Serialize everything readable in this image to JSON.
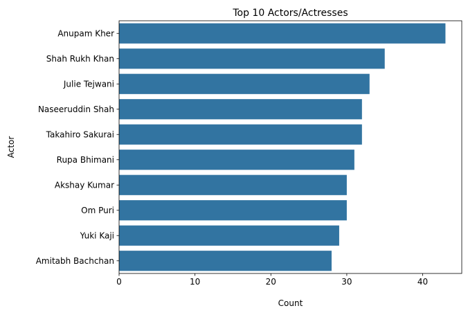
{
  "chart_data": {
    "type": "bar",
    "orientation": "horizontal",
    "title": "Top 10 Actors/Actresses",
    "xlabel": "Count",
    "ylabel": "Actor",
    "categories": [
      "Anupam Kher",
      "Shah Rukh Khan",
      "Julie Tejwani",
      "Naseeruddin Shah",
      "Takahiro Sakurai",
      "Rupa Bhimani",
      "Akshay Kumar",
      "Om Puri",
      "Yuki Kaji",
      "Amitabh Bachchan"
    ],
    "values": [
      43,
      35,
      33,
      32,
      32,
      31,
      30,
      30,
      29,
      28
    ],
    "xlim": [
      0,
      45.15
    ],
    "xticks": [
      0,
      10,
      20,
      30,
      40
    ],
    "xtick_labels": [
      "0",
      "10",
      "20",
      "30",
      "40"
    ],
    "grid": false,
    "bar_color": "#3274a1"
  }
}
